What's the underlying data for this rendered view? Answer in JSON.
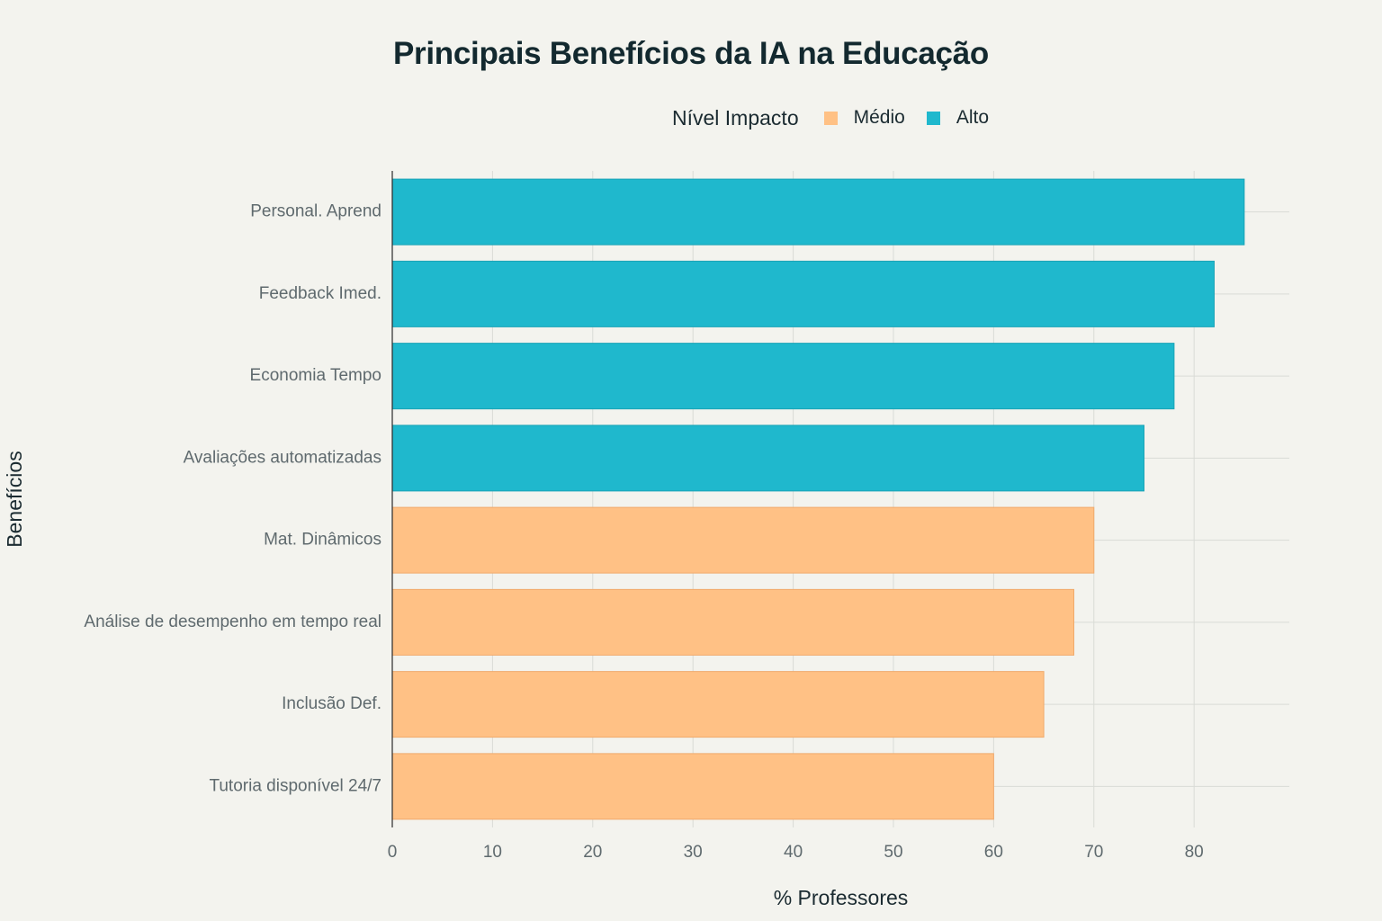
{
  "colors": {
    "background": "#f3f3ee",
    "alto": "#1fb8cd",
    "medio": "#ffc185",
    "grid": "#d9dbd6",
    "axis": "#2a2a2a"
  },
  "chart_data": {
    "type": "bar",
    "orientation": "horizontal",
    "title": "Principais Benefícios da IA na Educação",
    "xlabel": "% Professores",
    "ylabel": "Benefícios",
    "xlim": [
      0,
      89.5
    ],
    "xticks": [
      0,
      10,
      20,
      30,
      40,
      50,
      60,
      70,
      80
    ],
    "grid": true,
    "legend": {
      "title": "Nível Impacto",
      "position": "top",
      "entries": [
        {
          "label": "Médio",
          "color": "#ffc185"
        },
        {
          "label": "Alto",
          "color": "#1fb8cd"
        }
      ]
    },
    "categories": [
      "Personal. Aprend",
      "Feedback Imed.",
      "Economia Tempo",
      "Avaliações automatizadas",
      "Mat. Dinâmicos",
      "Análise de desempenho em tempo real",
      "Inclusão Def.",
      "Tutoria disponível 24/7"
    ],
    "values": [
      85,
      82,
      78,
      75,
      70,
      68,
      65,
      60
    ],
    "impact": [
      "Alto",
      "Alto",
      "Alto",
      "Alto",
      "Médio",
      "Médio",
      "Médio",
      "Médio"
    ]
  }
}
